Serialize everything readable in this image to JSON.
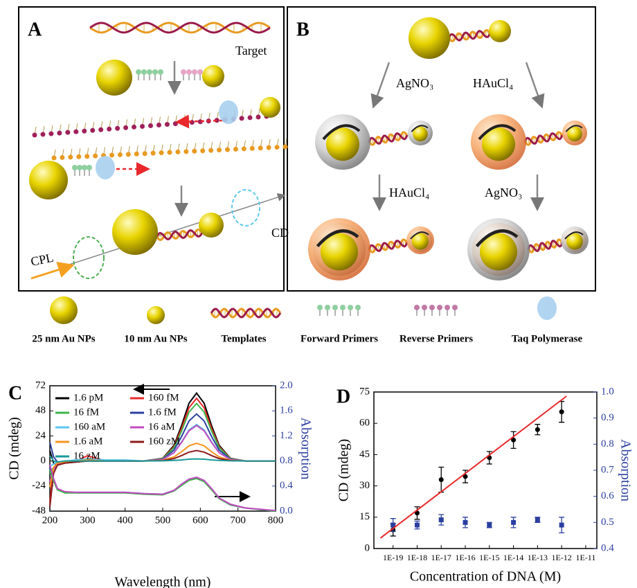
{
  "panel_a": {
    "label": "A",
    "target": "Target",
    "cd": "CD",
    "cpl": "CPL"
  },
  "panel_b": {
    "label": "B",
    "reagents": [
      "AgNO₃",
      "HAuCl₄",
      "HAuCl₄",
      "AgNO₃"
    ]
  },
  "legend": [
    "25 nm Au NPs",
    "10 nm Au NPs",
    "Templates",
    "Forward Primers",
    "Reverse Primers",
    "Taq Polymerase"
  ],
  "chart_data": [
    {
      "type": "line",
      "label": "C",
      "x_label": "Wavelength (nm)",
      "y_label": "CD (mdeg)",
      "y2_label": "Absorption",
      "legend": "upper left",
      "x": [
        200,
        210,
        220,
        240,
        270,
        300,
        350,
        400,
        450,
        500,
        530,
        550,
        570,
        590,
        610,
        630,
        650,
        680,
        720,
        800
      ],
      "xlim": [
        200,
        800
      ],
      "xticks": [
        200,
        300,
        400,
        500,
        600,
        700,
        800
      ],
      "ylim": [
        -48,
        72
      ],
      "yticks": [
        -48,
        -24,
        0,
        24,
        48,
        72
      ],
      "y2lim": [
        0,
        2
      ],
      "y2ticks": [
        {
          "value": 0,
          "label": "0.0"
        },
        0.4,
        0.8,
        1.2,
        1.6,
        {
          "value": 2,
          "label": "2.0"
        }
      ],
      "series": [
        {
          "name": "1.6 pM",
          "color": "#000000",
          "values": [
            10,
            -2,
            -4,
            -2,
            -1,
            0,
            0,
            0,
            0,
            2.6,
            15,
            33.8,
            55.3,
            65,
            55.3,
            33.8,
            15,
            2.6,
            0,
            0
          ]
        },
        {
          "name": "160 fM",
          "color": "#e8282a",
          "values": [
            -40,
            -6,
            -3,
            -1,
            0,
            5,
            0,
            0,
            0,
            2.4,
            13.8,
            31.2,
            51,
            60,
            51,
            31.2,
            13.8,
            2.4,
            0,
            0
          ]
        },
        {
          "name": "16 fM",
          "color": "#3cb54a",
          "values": [
            -12,
            -6,
            -3,
            -2,
            -1,
            0,
            0,
            0,
            0,
            2.2,
            12.7,
            28.6,
            46.8,
            55,
            46.8,
            28.6,
            12.7,
            2.2,
            0,
            0
          ]
        },
        {
          "name": "1.6 fM",
          "color": "#2b3fa0",
          "values": [
            18,
            4,
            -1,
            -1,
            0,
            0,
            0,
            0,
            0,
            1.8,
            10.4,
            23.4,
            38.3,
            45,
            38.3,
            23.4,
            10.4,
            1.8,
            0,
            0
          ]
        },
        {
          "name": "160 aM",
          "color": "#5bc8ef",
          "values": [
            -5,
            -3,
            -1,
            0,
            1,
            2,
            1,
            1,
            0,
            1.4,
            8.1,
            18.2,
            29.8,
            35,
            29.8,
            18.2,
            8.1,
            1.4,
            0,
            0
          ]
        },
        {
          "name": "16 aM",
          "color": "#c04bbf",
          "values": [
            -20,
            -8,
            -3,
            -1,
            0,
            0,
            0,
            0,
            0,
            1.4,
            7.8,
            17.7,
            28.9,
            34,
            28.9,
            17.7,
            7.8,
            1.4,
            0,
            0
          ]
        },
        {
          "name": "1.6 aM",
          "color": "#f7941d",
          "values": [
            -25,
            -6,
            -2,
            -1,
            0,
            1,
            0,
            0,
            0,
            0.7,
            3.9,
            8.8,
            14.5,
            17,
            14.5,
            8.8,
            3.9,
            0.7,
            0,
            0
          ]
        },
        {
          "name": "160 zM",
          "color": "#8b1a1a",
          "values": [
            -44,
            -12,
            -4,
            -2,
            -1,
            0,
            0,
            0,
            0,
            0.4,
            2.3,
            5.2,
            8.5,
            10,
            8.5,
            5.2,
            2.3,
            0.4,
            0,
            0
          ]
        },
        {
          "name": "16 zM",
          "color": "#1a9a9a",
          "values": [
            5,
            0,
            -1,
            0,
            0,
            0,
            0,
            0,
            0,
            0.1,
            0.5,
            1,
            1.7,
            2,
            1.7,
            1,
            0.5,
            0.1,
            0,
            0
          ]
        },
        {
          "axis": "y2",
          "color": "#2b3fa0",
          "values": [
            0.7,
            0.5,
            0.35,
            0.3,
            0.3,
            0.3,
            0.3,
            0.3,
            0.28,
            0.27,
            0.33,
            0.42,
            0.5,
            0.53,
            0.48,
            0.35,
            0.2,
            0.1,
            0.05,
            0
          ]
        },
        {
          "axis": "y2",
          "color": "#3cb54a",
          "values": [
            0.66,
            0.48,
            0.34,
            0.29,
            0.29,
            0.29,
            0.29,
            0.29,
            0.27,
            0.26,
            0.32,
            0.41,
            0.49,
            0.52,
            0.47,
            0.34,
            0.2,
            0.1,
            0.05,
            0
          ]
        },
        {
          "axis": "y2",
          "color": "#c04bbf",
          "values": [
            0.74,
            0.52,
            0.36,
            0.31,
            0.3,
            0.3,
            0.3,
            0.3,
            0.28,
            0.27,
            0.33,
            0.43,
            0.51,
            0.54,
            0.49,
            0.36,
            0.21,
            0.11,
            0.05,
            0.01
          ]
        }
      ]
    },
    {
      "type": "scatter",
      "label": "D",
      "x_label": "Concentration of DNA (M)",
      "y_label": "CD (mdeg)",
      "y2_label": "Absorption",
      "x_scale": "log",
      "xlim": [
        1.6e-20,
        2.9e-11
      ],
      "xticks": [
        {
          "value": 1e-19,
          "label": "1E-19"
        },
        {
          "value": 1e-18,
          "label": "1E-18"
        },
        {
          "value": 1e-17,
          "label": "1E-17"
        },
        {
          "value": 1e-16,
          "label": "1E-16"
        },
        {
          "value": 1e-15,
          "label": "1E-15"
        },
        {
          "value": 1e-14,
          "label": "1E-14"
        },
        {
          "value": 1e-13,
          "label": "1E-13"
        },
        {
          "value": 1e-12,
          "label": "1E-12"
        },
        {
          "value": 1e-11,
          "label": "1E-11"
        }
      ],
      "ylim": [
        0,
        75
      ],
      "yticks": [
        0,
        15,
        30,
        45,
        60,
        75
      ],
      "y2lim": [
        0.4,
        1
      ],
      "y2ticks": [
        0.4,
        0.5,
        0.6,
        0.7,
        0.8,
        0.9,
        {
          "value": 1,
          "label": "1.0"
        }
      ],
      "series": [
        {
          "color": "#000000",
          "marker": "circle",
          "x": [
            1e-19,
            1e-18,
            1e-17,
            1e-16,
            1e-15,
            1e-14,
            1e-13,
            1e-12
          ],
          "values": [
            9,
            17,
            33,
            34.5,
            43.5,
            52,
            57,
            65.5
          ],
          "errors": [
            3,
            3,
            6,
            3,
            3,
            4,
            2.5,
            5
          ]
        },
        {
          "color": "#2b3fa0",
          "marker": "square",
          "axis": "y2",
          "x": [
            1e-19,
            1e-18,
            1e-17,
            1e-16,
            1e-15,
            1e-14,
            1e-13,
            1e-12
          ],
          "values": [
            0.49,
            0.49,
            0.51,
            0.5,
            0.49,
            0.5,
            0.51,
            0.49
          ],
          "errors": [
            0.025,
            0.015,
            0.02,
            0.02,
            0.01,
            0.02,
            0.01,
            0.03
          ]
        },
        {
          "color": "#e8282a",
          "style": "line",
          "x": [
            3e-20,
            1.6e-12
          ],
          "values": [
            5,
            73
          ]
        }
      ]
    }
  ]
}
